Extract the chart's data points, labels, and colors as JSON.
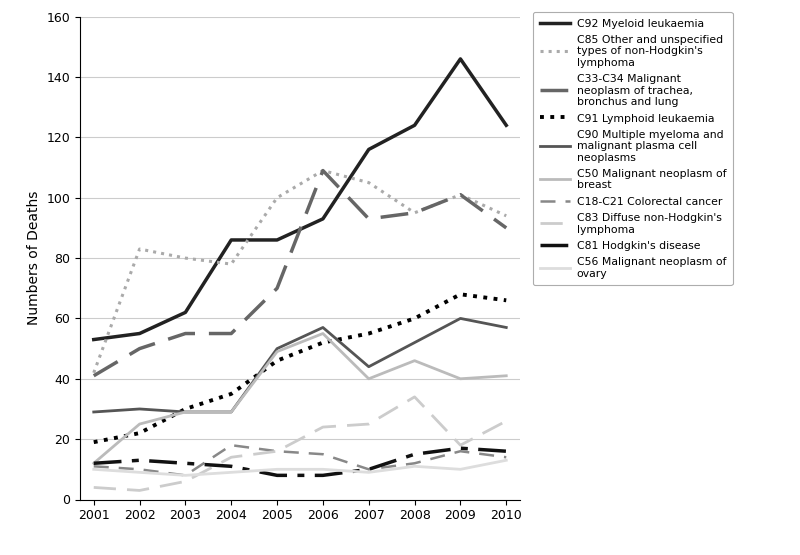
{
  "years": [
    2001,
    2002,
    2003,
    2004,
    2005,
    2006,
    2007,
    2008,
    2009,
    2010
  ],
  "series": [
    {
      "label": "C92 Myeloid leukaemia",
      "color": "#222222",
      "linestyle": "solid",
      "linewidth": 2.5,
      "dashes": null,
      "values": [
        53,
        55,
        62,
        86,
        86,
        93,
        116,
        124,
        146,
        124
      ]
    },
    {
      "label": "C85 Other and unspecified\ntypes of non-Hodgkin's\nlymphoma",
      "color": "#aaaaaa",
      "linestyle": "dotted",
      "linewidth": 2.2,
      "dashes": null,
      "values": [
        42,
        83,
        80,
        78,
        100,
        109,
        105,
        95,
        101,
        94
      ]
    },
    {
      "label": "C33-C34 Malignant\nneoplasm of trachea,\nbronchus and lung",
      "color": "#666666",
      "linestyle": "dashed",
      "linewidth": 2.5,
      "dashes": [
        8,
        4
      ],
      "values": [
        41,
        50,
        55,
        55,
        70,
        109,
        93,
        95,
        101,
        90
      ]
    },
    {
      "label": "C91 Lymphoid leukaemia",
      "color": "#000000",
      "linestyle": "dotted",
      "linewidth": 2.8,
      "dashes": null,
      "values": [
        19,
        22,
        30,
        35,
        46,
        52,
        55,
        60,
        68,
        66
      ]
    },
    {
      "label": "C90 Multiple myeloma and\nmalignant plasma cell\nneoplasms",
      "color": "#555555",
      "linestyle": "solid",
      "linewidth": 2.0,
      "dashes": null,
      "values": [
        29,
        30,
        29,
        29,
        50,
        57,
        44,
        52,
        60,
        57
      ]
    },
    {
      "label": "C50 Malignant neoplasm of\nbreast",
      "color": "#bbbbbb",
      "linestyle": "solid",
      "linewidth": 2.0,
      "dashes": null,
      "values": [
        12,
        25,
        29,
        29,
        49,
        55,
        40,
        46,
        40,
        41
      ]
    },
    {
      "label": "C18-C21 Colorectal cancer",
      "color": "#888888",
      "linestyle": "dashed",
      "linewidth": 1.8,
      "dashes": [
        6,
        4
      ],
      "values": [
        11,
        10,
        8,
        18,
        16,
        15,
        10,
        12,
        16,
        14
      ]
    },
    {
      "label": "C83 Diffuse non-Hodgkin's\nlymphoma",
      "color": "#cccccc",
      "linestyle": "dashed",
      "linewidth": 2.0,
      "dashes": [
        8,
        4
      ],
      "values": [
        4,
        3,
        6,
        14,
        16,
        24,
        25,
        34,
        18,
        26
      ]
    },
    {
      "label": "C81 Hodgkin's disease",
      "color": "#111111",
      "linestyle": "solid",
      "linewidth": 2.5,
      "dashes": [
        8,
        3,
        2,
        3
      ],
      "values": [
        12,
        13,
        12,
        11,
        8,
        8,
        10,
        15,
        17,
        16
      ]
    },
    {
      "label": "C56 Malignant neoplasm of\novary",
      "color": "#dddddd",
      "linestyle": "solid",
      "linewidth": 2.0,
      "dashes": null,
      "values": [
        10,
        9,
        8,
        9,
        10,
        10,
        9,
        11,
        10,
        13
      ]
    }
  ],
  "ylabel": "Numbers of Deaths",
  "ylim": [
    0,
    160
  ],
  "yticks": [
    0,
    20,
    40,
    60,
    80,
    100,
    120,
    140,
    160
  ],
  "xticks": [
    2001,
    2002,
    2003,
    2004,
    2005,
    2006,
    2007,
    2008,
    2009,
    2010
  ],
  "background_color": "#ffffff",
  "grid_color": "#cccccc"
}
